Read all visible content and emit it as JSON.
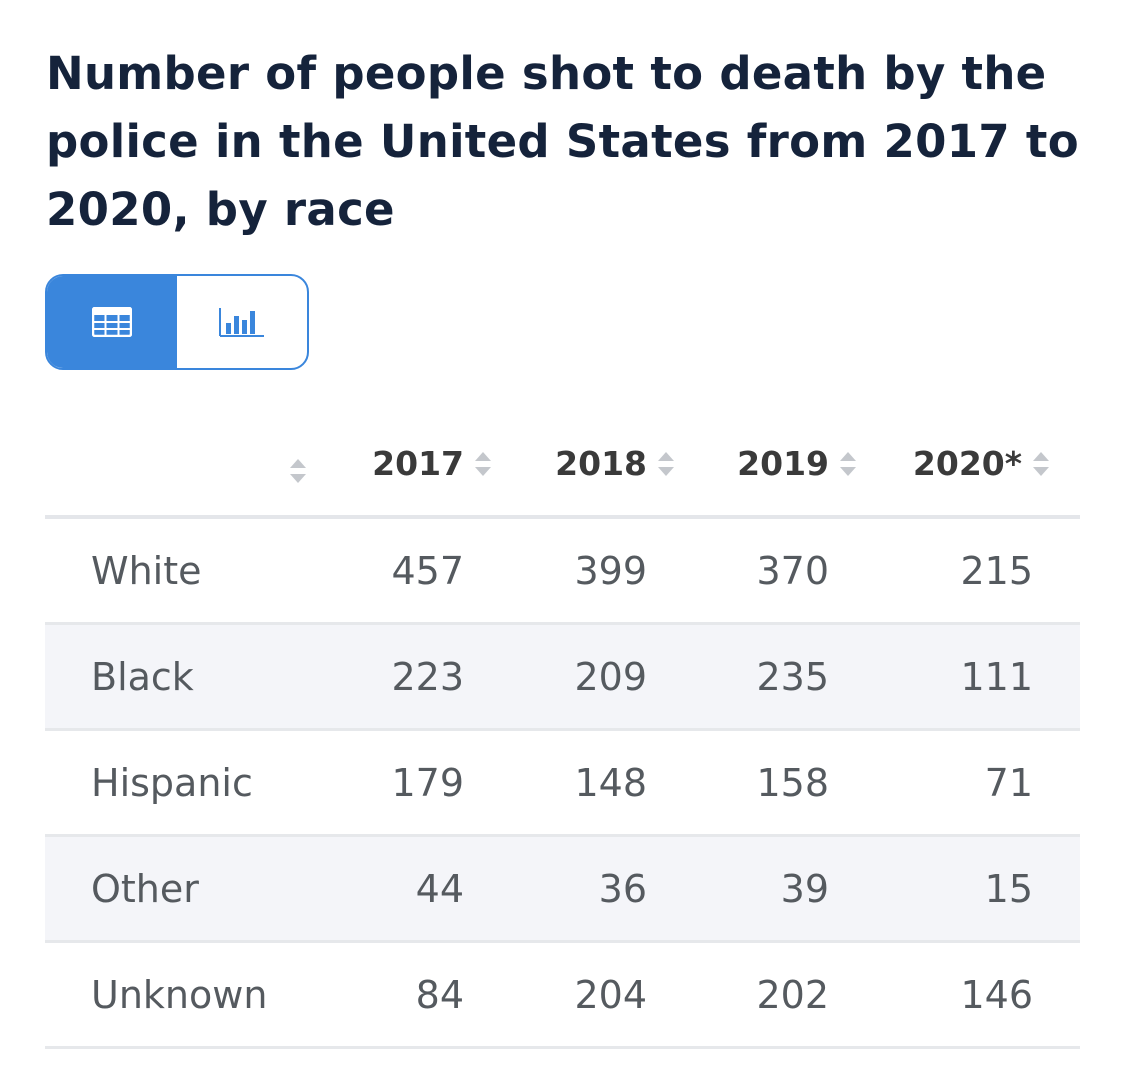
{
  "chart_data": {
    "type": "table",
    "title": "Number of people shot to death by the police in the United States from 2017 to 2020, by race",
    "columns": [
      "",
      "2017",
      "2018",
      "2019",
      "2020*"
    ],
    "rows": [
      {
        "label": "White",
        "values": [
          457,
          399,
          370,
          215
        ]
      },
      {
        "label": "Black",
        "values": [
          223,
          209,
          235,
          111
        ]
      },
      {
        "label": "Hispanic",
        "values": [
          179,
          148,
          158,
          71
        ]
      },
      {
        "label": "Other",
        "values": [
          44,
          36,
          39,
          15
        ]
      },
      {
        "label": "Unknown",
        "values": [
          84,
          204,
          202,
          146
        ]
      }
    ]
  },
  "view_toggle": {
    "options": [
      "table-view",
      "chart-view"
    ],
    "selected": "table-view",
    "active_color": "#3a86dc"
  },
  "colors": {
    "title": "#15233b",
    "accent": "#3a86dc",
    "row_stripe": "#f4f5f9",
    "sort_arrow": "#c4c7cc"
  }
}
